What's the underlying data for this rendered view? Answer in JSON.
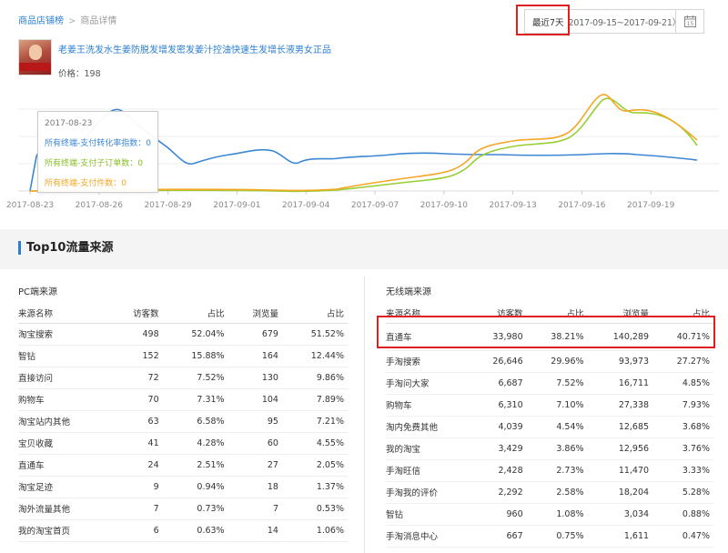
{
  "breadcrumb": {
    "link": "商品店铺榜",
    "separator": ">",
    "current": "商品详情"
  },
  "date_picker": {
    "preset_label": "最近7天",
    "range_text": "2017-09-15~2017-09-21）",
    "calendar_day": "15"
  },
  "product": {
    "title": "老姜王洗发水生姜防脱发增发密发姜汁控油快速生发增长液男女正品",
    "price_text": "价格：198"
  },
  "chart_data": {
    "type": "line",
    "x_ticks": [
      "2017-08-23",
      "2017-08-26",
      "2017-08-29",
      "2017-09-01",
      "2017-09-04",
      "2017-09-07",
      "2017-09-10",
      "2017-09-13",
      "2017-09-16",
      "2017-09-19"
    ],
    "series": [
      {
        "name": "所有终端-支付转化率指数",
        "color": "#3b87d4"
      },
      {
        "name": "所有终端-支付子订单数",
        "color": "#9acd32"
      },
      {
        "name": "所有终端-支付件数",
        "color": "#f5a623"
      }
    ],
    "tooltip": {
      "date": "2017-08-23",
      "lines": [
        "所有终端-支付转化率指数：0",
        "所有终端-支付子订单数：0",
        "所有终端-支付件数：0"
      ]
    }
  },
  "section_title": "Top10流量来源",
  "pc": {
    "label": "PC端来源",
    "headers": [
      "来源名称",
      "访客数",
      "占比",
      "浏览量",
      "占比"
    ],
    "rows": [
      [
        "淘宝搜索",
        "498",
        "52.04%",
        "679",
        "51.52%"
      ],
      [
        "智钻",
        "152",
        "15.88%",
        "164",
        "12.44%"
      ],
      [
        "直接访问",
        "72",
        "7.52%",
        "130",
        "9.86%"
      ],
      [
        "购物车",
        "70",
        "7.31%",
        "104",
        "7.89%"
      ],
      [
        "淘宝站内其他",
        "63",
        "6.58%",
        "95",
        "7.21%"
      ],
      [
        "宝贝收藏",
        "41",
        "4.28%",
        "60",
        "4.55%"
      ],
      [
        "直通车",
        "24",
        "2.51%",
        "27",
        "2.05%"
      ],
      [
        "淘宝足迹",
        "9",
        "0.94%",
        "18",
        "1.37%"
      ],
      [
        "淘外流量其他",
        "7",
        "0.73%",
        "7",
        "0.53%"
      ],
      [
        "我的淘宝首页",
        "6",
        "0.63%",
        "14",
        "1.06%"
      ]
    ]
  },
  "mobile": {
    "label": "无线端来源",
    "headers": [
      "来源名称",
      "访客数",
      "占比",
      "浏览量",
      "占比"
    ],
    "rows": [
      [
        "直通车",
        "33,980",
        "38.21%",
        "140,289",
        "40.71%"
      ],
      [
        "手淘搜索",
        "26,646",
        "29.96%",
        "93,973",
        "27.27%"
      ],
      [
        "手淘问大家",
        "6,687",
        "7.52%",
        "16,711",
        "4.85%"
      ],
      [
        "购物车",
        "6,310",
        "7.10%",
        "27,338",
        "7.93%"
      ],
      [
        "淘内免费其他",
        "4,039",
        "4.54%",
        "12,685",
        "3.68%"
      ],
      [
        "我的淘宝",
        "3,429",
        "3.86%",
        "12,956",
        "3.76%"
      ],
      [
        "手淘旺信",
        "2,428",
        "2.73%",
        "11,470",
        "3.33%"
      ],
      [
        "手淘我的评价",
        "2,292",
        "2.58%",
        "18,204",
        "5.28%"
      ],
      [
        "智钻",
        "960",
        "1.08%",
        "3,034",
        "0.88%"
      ],
      [
        "手淘消息中心",
        "667",
        "0.75%",
        "1,611",
        "0.47%"
      ]
    ]
  }
}
